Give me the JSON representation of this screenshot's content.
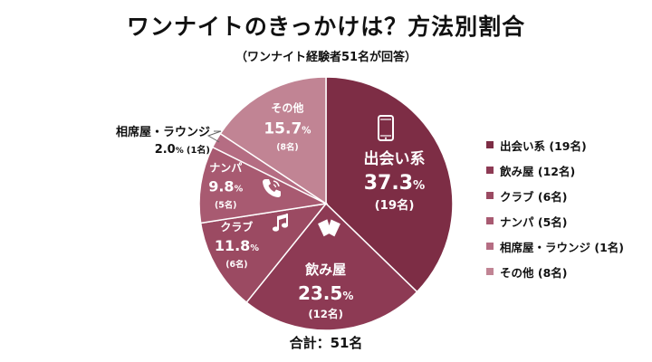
{
  "title": "ワンナイトのきっかけは？方法別割合",
  "subtitle": "（ワンナイト経験者51名が回答）",
  "total_label": "合計：51名",
  "chart_data": {
    "type": "pie",
    "title": "ワンナイトのきっかけは？方法別割合",
    "subtitle": "（ワンナイト経験者51名が回答）",
    "total": 51,
    "start": "12 o'clock, clockwise",
    "legend_position": "right",
    "slices": [
      {
        "label": "出会い系",
        "value": 19,
        "percent": 37.3,
        "count_label": "(19名)",
        "legend": "出会い系 (19名)",
        "color": "#7d2d45",
        "icon": "smartphone-icon"
      },
      {
        "label": "飲み屋",
        "value": 12,
        "percent": 23.5,
        "count_label": "(12名)",
        "legend": "飲み屋 (12名)",
        "color": "#8d3a54",
        "icon": "drinks-glasses-icon"
      },
      {
        "label": "クラブ",
        "value": 6,
        "percent": 11.8,
        "count_label": "(6名)",
        "legend": "クラブ (6名)",
        "color": "#9b4a62",
        "icon": "music-note-icon"
      },
      {
        "label": "ナンパ",
        "value": 5,
        "percent": 9.8,
        "count_label": "(5名)",
        "legend": "ナンパ (5名)",
        "color": "#a85a71",
        "icon": "phone-handset-icon"
      },
      {
        "label": "相席屋・ラウンジ",
        "value": 1,
        "percent": 2.0,
        "count_label": "(1名)",
        "legend": "相席屋・ラウンジ (1名)",
        "color": "#b56d83"
      },
      {
        "label": "その他",
        "value": 8,
        "percent": 15.7,
        "count_label": "(8名)",
        "legend": "その他 (8名)",
        "color": "#c18494"
      }
    ]
  }
}
